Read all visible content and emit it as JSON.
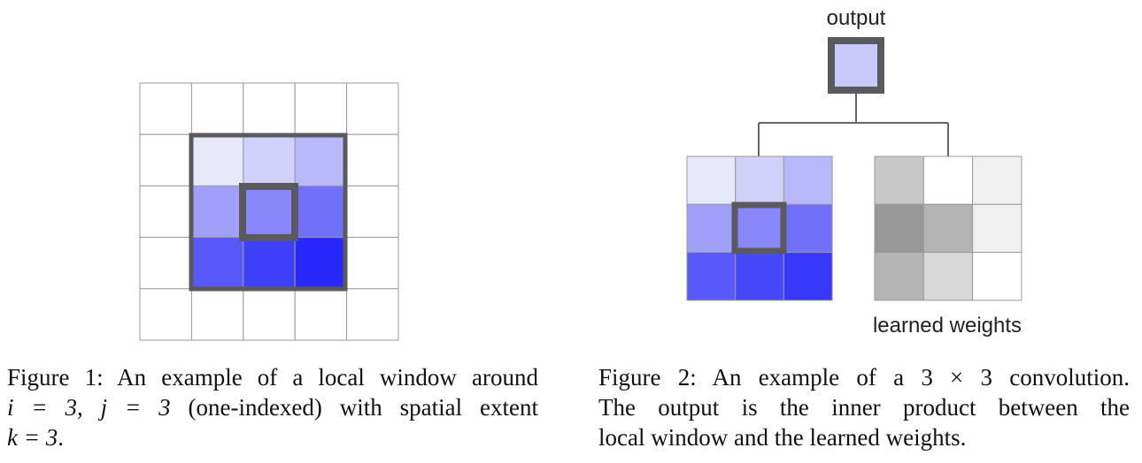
{
  "figure1": {
    "grid": [
      [
        "#ffffff",
        "#ffffff",
        "#ffffff",
        "#ffffff",
        "#ffffff"
      ],
      [
        "#ffffff",
        "#e8e8fb",
        "#d0d0fb",
        "#b8b8fb",
        "#ffffff"
      ],
      [
        "#ffffff",
        "#a0a0fb",
        "#8888fb",
        "#7070fb",
        "#ffffff"
      ],
      [
        "#ffffff",
        "#5858fb",
        "#4040fb",
        "#2828fb",
        "#ffffff"
      ],
      [
        "#ffffff",
        "#ffffff",
        "#ffffff",
        "#ffffff",
        "#ffffff"
      ]
    ],
    "caption": {
      "line1": "Figure 1: An example of a local window around",
      "line2_math": "i = 3, j = 3",
      "line2_text": "(one-indexed) with spatial extent",
      "line3_math": "k = 3",
      "line3_text": "."
    }
  },
  "figure2": {
    "output_label": "output",
    "output_color": "#c8c8fb",
    "window": [
      [
        "#e8e8fb",
        "#d0d0fb",
        "#b8b8fb"
      ],
      [
        "#a0a0fb",
        "#8888fb",
        "#7070fb"
      ],
      [
        "#5858fb",
        "#4848fb",
        "#3838fb"
      ]
    ],
    "weights": [
      [
        "#c8c8c8",
        "#ffffff",
        "#f0f0f0"
      ],
      [
        "#989898",
        "#b4b4b4",
        "#f0f0f0"
      ],
      [
        "#b4b4b4",
        "#d8d8d8",
        "#ffffff"
      ]
    ],
    "weights_label": "learned weights",
    "caption": {
      "line1": "Figure 2: An example of a 3 × 3 convolution.",
      "line2": "The output is the inner product between the",
      "line3": "local window and the learned weights."
    }
  },
  "colors": {
    "frame": "#5a5a5e",
    "grid_line": "#9a9a9a",
    "connector": "#666666"
  }
}
